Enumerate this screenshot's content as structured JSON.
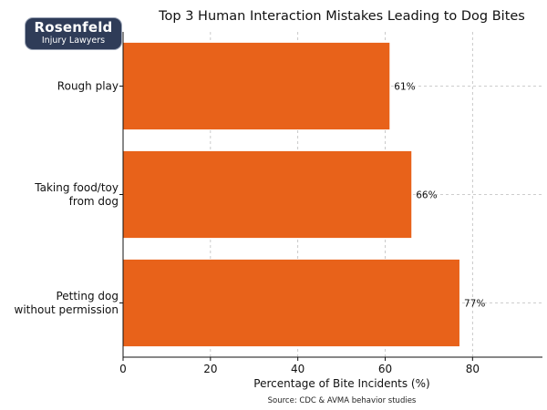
{
  "brand": {
    "name": "Rosenfeld",
    "tagline": "Injury Lawyers",
    "bg_color": "#2f3c58"
  },
  "chart_data": {
    "type": "bar",
    "orientation": "horizontal",
    "title": "Top 3 Human Interaction Mistakes Leading to Dog Bites",
    "categories": [
      [
        "Rough play"
      ],
      [
        "Taking food/toy",
        "from dog"
      ],
      [
        "Petting dog",
        "without permission"
      ]
    ],
    "values": [
      61,
      66,
      77
    ],
    "value_labels": [
      "61%",
      "66%",
      "77%"
    ],
    "xlabel": "Percentage of Bite Incidents (%)",
    "ylabel": "",
    "xlim": [
      0,
      96
    ],
    "xticks": [
      0,
      20,
      40,
      60,
      80
    ],
    "grid": true,
    "bar_color": "#e8621a",
    "source": "Source: CDC & AVMA behavior studies"
  }
}
